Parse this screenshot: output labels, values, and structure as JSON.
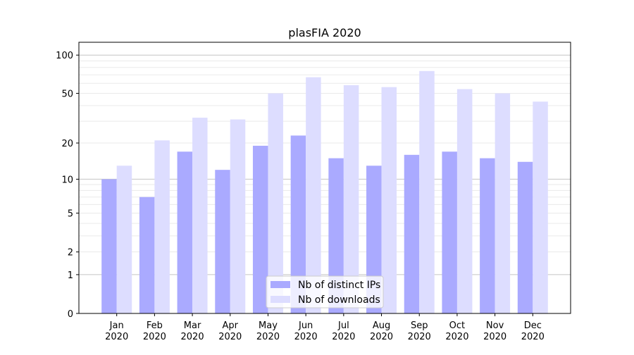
{
  "chart_data": {
    "type": "bar",
    "title": "plasFIA 2020",
    "xlabel": "",
    "ylabel": "",
    "yscale": "log10(1+y)",
    "ylim": [
      0,
      120
    ],
    "xlim": [
      -1,
      12
    ],
    "grid": true,
    "legend_position": "lower-center",
    "categories": [
      "Jan\n2020",
      "Feb\n2020",
      "Mar\n2020",
      "Apr\n2020",
      "May\n2020",
      "Jun\n2020",
      "Jul\n2020",
      "Aug\n2020",
      "Sep\n2020",
      "Oct\n2020",
      "Nov\n2020",
      "Dec\n2020"
    ],
    "yticks": [
      0,
      1,
      2,
      5,
      10,
      20,
      50,
      100
    ],
    "ytick_labels": [
      "0",
      "1",
      "2",
      "5",
      "10",
      "20",
      "50",
      "100"
    ],
    "series": [
      {
        "name": "Nb of distinct IPs",
        "color": "#aaaaff",
        "values": [
          10,
          7,
          17,
          12,
          19,
          23,
          15,
          13,
          16,
          17,
          15,
          14
        ]
      },
      {
        "name": "Nb of downloads",
        "color": "#ddddff",
        "values": [
          13,
          21,
          32,
          31,
          50,
          67,
          58,
          56,
          75,
          54,
          50,
          43
        ]
      }
    ]
  }
}
